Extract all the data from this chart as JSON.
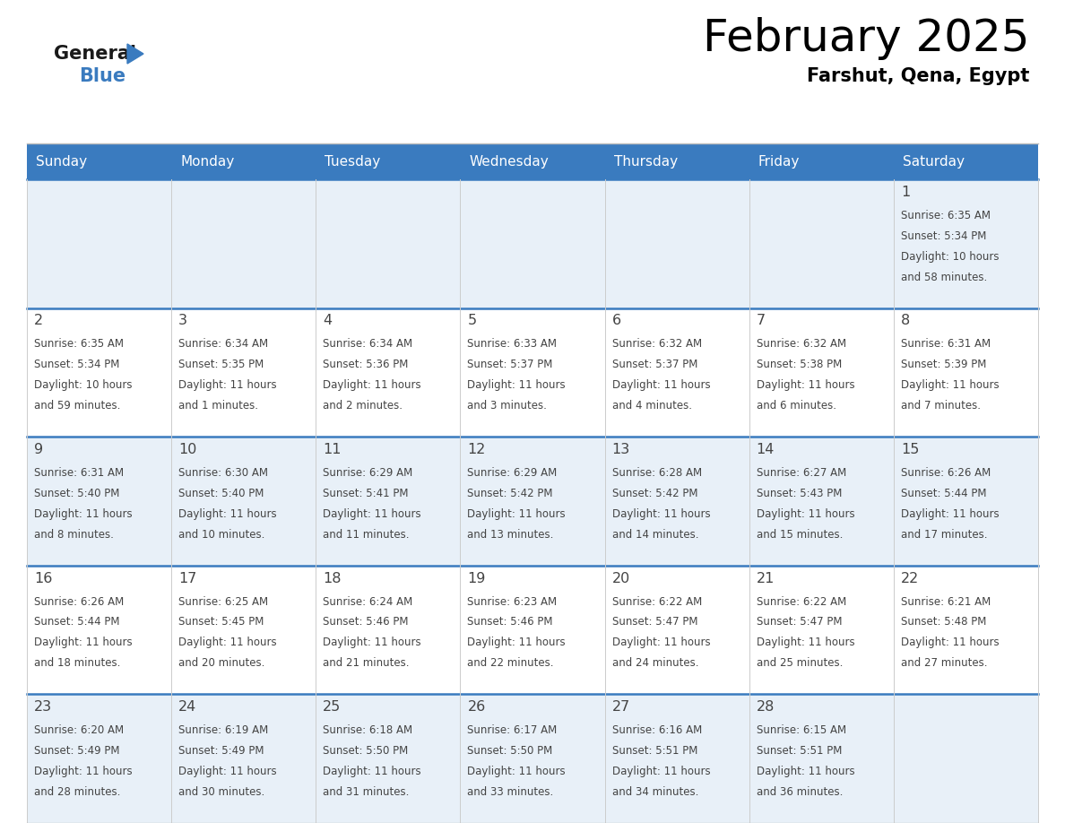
{
  "title": "February 2025",
  "subtitle": "Farshut, Qena, Egypt",
  "header_color": "#3a7bbf",
  "header_text_color": "#ffffff",
  "row0_bg": "#e8f0f8",
  "row1_bg": "#ffffff",
  "line_color": "#3a7bbf",
  "text_color": "#444444",
  "day_headers": [
    "Sunday",
    "Monday",
    "Tuesday",
    "Wednesday",
    "Thursday",
    "Friday",
    "Saturday"
  ],
  "days": [
    {
      "day": 1,
      "col": 6,
      "row": 0,
      "sunrise": "6:35 AM",
      "sunset": "5:34 PM",
      "daylight_hours": 10,
      "daylight_minutes": 58
    },
    {
      "day": 2,
      "col": 0,
      "row": 1,
      "sunrise": "6:35 AM",
      "sunset": "5:34 PM",
      "daylight_hours": 10,
      "daylight_minutes": 59
    },
    {
      "day": 3,
      "col": 1,
      "row": 1,
      "sunrise": "6:34 AM",
      "sunset": "5:35 PM",
      "daylight_hours": 11,
      "daylight_minutes": 1
    },
    {
      "day": 4,
      "col": 2,
      "row": 1,
      "sunrise": "6:34 AM",
      "sunset": "5:36 PM",
      "daylight_hours": 11,
      "daylight_minutes": 2
    },
    {
      "day": 5,
      "col": 3,
      "row": 1,
      "sunrise": "6:33 AM",
      "sunset": "5:37 PM",
      "daylight_hours": 11,
      "daylight_minutes": 3
    },
    {
      "day": 6,
      "col": 4,
      "row": 1,
      "sunrise": "6:32 AM",
      "sunset": "5:37 PM",
      "daylight_hours": 11,
      "daylight_minutes": 4
    },
    {
      "day": 7,
      "col": 5,
      "row": 1,
      "sunrise": "6:32 AM",
      "sunset": "5:38 PM",
      "daylight_hours": 11,
      "daylight_minutes": 6
    },
    {
      "day": 8,
      "col": 6,
      "row": 1,
      "sunrise": "6:31 AM",
      "sunset": "5:39 PM",
      "daylight_hours": 11,
      "daylight_minutes": 7
    },
    {
      "day": 9,
      "col": 0,
      "row": 2,
      "sunrise": "6:31 AM",
      "sunset": "5:40 PM",
      "daylight_hours": 11,
      "daylight_minutes": 8
    },
    {
      "day": 10,
      "col": 1,
      "row": 2,
      "sunrise": "6:30 AM",
      "sunset": "5:40 PM",
      "daylight_hours": 11,
      "daylight_minutes": 10
    },
    {
      "day": 11,
      "col": 2,
      "row": 2,
      "sunrise": "6:29 AM",
      "sunset": "5:41 PM",
      "daylight_hours": 11,
      "daylight_minutes": 11
    },
    {
      "day": 12,
      "col": 3,
      "row": 2,
      "sunrise": "6:29 AM",
      "sunset": "5:42 PM",
      "daylight_hours": 11,
      "daylight_minutes": 13
    },
    {
      "day": 13,
      "col": 4,
      "row": 2,
      "sunrise": "6:28 AM",
      "sunset": "5:42 PM",
      "daylight_hours": 11,
      "daylight_minutes": 14
    },
    {
      "day": 14,
      "col": 5,
      "row": 2,
      "sunrise": "6:27 AM",
      "sunset": "5:43 PM",
      "daylight_hours": 11,
      "daylight_minutes": 15
    },
    {
      "day": 15,
      "col": 6,
      "row": 2,
      "sunrise": "6:26 AM",
      "sunset": "5:44 PM",
      "daylight_hours": 11,
      "daylight_minutes": 17
    },
    {
      "day": 16,
      "col": 0,
      "row": 3,
      "sunrise": "6:26 AM",
      "sunset": "5:44 PM",
      "daylight_hours": 11,
      "daylight_minutes": 18
    },
    {
      "day": 17,
      "col": 1,
      "row": 3,
      "sunrise": "6:25 AM",
      "sunset": "5:45 PM",
      "daylight_hours": 11,
      "daylight_minutes": 20
    },
    {
      "day": 18,
      "col": 2,
      "row": 3,
      "sunrise": "6:24 AM",
      "sunset": "5:46 PM",
      "daylight_hours": 11,
      "daylight_minutes": 21
    },
    {
      "day": 19,
      "col": 3,
      "row": 3,
      "sunrise": "6:23 AM",
      "sunset": "5:46 PM",
      "daylight_hours": 11,
      "daylight_minutes": 22
    },
    {
      "day": 20,
      "col": 4,
      "row": 3,
      "sunrise": "6:22 AM",
      "sunset": "5:47 PM",
      "daylight_hours": 11,
      "daylight_minutes": 24
    },
    {
      "day": 21,
      "col": 5,
      "row": 3,
      "sunrise": "6:22 AM",
      "sunset": "5:47 PM",
      "daylight_hours": 11,
      "daylight_minutes": 25
    },
    {
      "day": 22,
      "col": 6,
      "row": 3,
      "sunrise": "6:21 AM",
      "sunset": "5:48 PM",
      "daylight_hours": 11,
      "daylight_minutes": 27
    },
    {
      "day": 23,
      "col": 0,
      "row": 4,
      "sunrise": "6:20 AM",
      "sunset": "5:49 PM",
      "daylight_hours": 11,
      "daylight_minutes": 28
    },
    {
      "day": 24,
      "col": 1,
      "row": 4,
      "sunrise": "6:19 AM",
      "sunset": "5:49 PM",
      "daylight_hours": 11,
      "daylight_minutes": 30
    },
    {
      "day": 25,
      "col": 2,
      "row": 4,
      "sunrise": "6:18 AM",
      "sunset": "5:50 PM",
      "daylight_hours": 11,
      "daylight_minutes": 31
    },
    {
      "day": 26,
      "col": 3,
      "row": 4,
      "sunrise": "6:17 AM",
      "sunset": "5:50 PM",
      "daylight_hours": 11,
      "daylight_minutes": 33
    },
    {
      "day": 27,
      "col": 4,
      "row": 4,
      "sunrise": "6:16 AM",
      "sunset": "5:51 PM",
      "daylight_hours": 11,
      "daylight_minutes": 34
    },
    {
      "day": 28,
      "col": 5,
      "row": 4,
      "sunrise": "6:15 AM",
      "sunset": "5:51 PM",
      "daylight_hours": 11,
      "daylight_minutes": 36
    }
  ],
  "num_rows": 5,
  "num_cols": 7
}
